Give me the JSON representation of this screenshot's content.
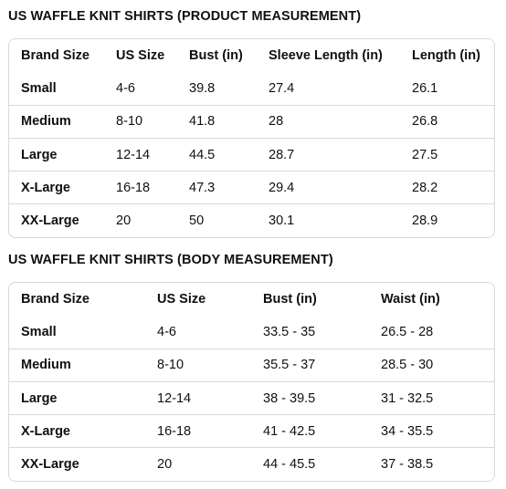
{
  "product": {
    "title": "US WAFFLE KNIT SHIRTS (PRODUCT MEASUREMENT)",
    "headers": [
      "Brand Size",
      "US Size",
      "Bust (in)",
      "Sleeve Length (in)",
      "Length (in)"
    ],
    "rows": [
      [
        "Small",
        "4-6",
        "39.8",
        "27.4",
        "26.1"
      ],
      [
        "Medium",
        "8-10",
        "41.8",
        "28",
        "26.8"
      ],
      [
        "Large",
        "12-14",
        "44.5",
        "28.7",
        "27.5"
      ],
      [
        "X-Large",
        "16-18",
        "47.3",
        "29.4",
        "28.2"
      ],
      [
        "XX-Large",
        "20",
        "50",
        "30.1",
        "28.9"
      ]
    ]
  },
  "body": {
    "title": "US WAFFLE KNIT SHIRTS (BODY MEASUREMENT)",
    "headers": [
      "Brand Size",
      "US Size",
      "Bust (in)",
      "Waist (in)"
    ],
    "rows": [
      [
        "Small",
        "4-6",
        "33.5 - 35",
        "26.5 - 28"
      ],
      [
        "Medium",
        "8-10",
        "35.5 - 37",
        "28.5 - 30"
      ],
      [
        "Large",
        "12-14",
        "38 - 39.5",
        "31 - 32.5"
      ],
      [
        "X-Large",
        "16-18",
        "41 - 42.5",
        "34 - 35.5"
      ],
      [
        "XX-Large",
        "20",
        "44 - 45.5",
        "37 - 38.5"
      ]
    ]
  }
}
